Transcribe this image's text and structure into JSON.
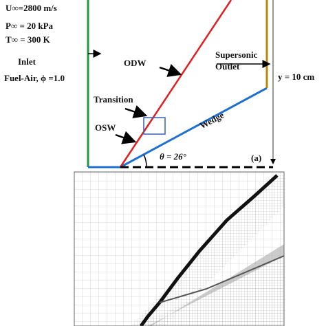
{
  "conditions": {
    "velocity": "U∞=2800 m/s",
    "pressure": "P∞ = 20 kPa",
    "temperature": "T∞ = 300 K"
  },
  "inlet": {
    "label": "Inlet",
    "mixture": "Fuel-Air,  ϕ =1.0"
  },
  "labels": {
    "odw": "ODW",
    "transition": "Transition",
    "osw": "OSW",
    "wedge": "Wedge",
    "angle": "θ = 26°",
    "panel": "(a)"
  },
  "outlet": {
    "line1": "Supersonic",
    "line2": "Outlet",
    "height": "y = 10 cm"
  }
}
